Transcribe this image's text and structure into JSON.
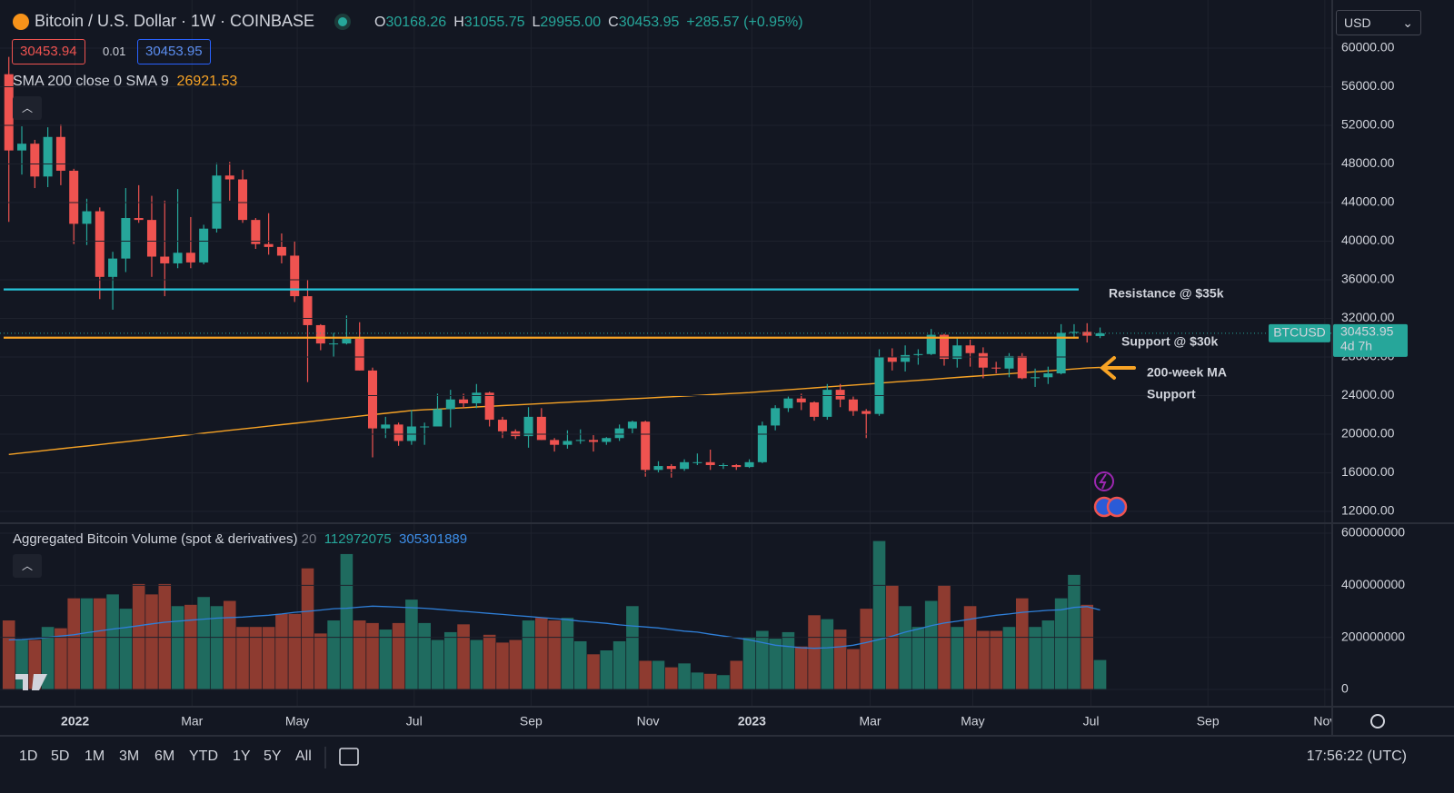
{
  "ui": {
    "ohlc_legend": [
      {
        "key": "O",
        "text": "30168.26"
      },
      {
        "key": "H",
        "text": "31055.75"
      },
      {
        "key": "L",
        "text": "29955.00"
      },
      {
        "key": "C",
        "text": "30453.95"
      }
    ],
    "change": "+285.57 (+0.95%)",
    "bid": "30453.94",
    "spread": "0.01",
    "ask": "30453.95",
    "currency": "USD",
    "symbol_tag": "BTCUSD",
    "countdown": "4d 7h",
    "ranges": [
      "1D",
      "5D",
      "1M",
      "3M",
      "6M",
      "YTD",
      "1Y",
      "5Y",
      "All"
    ],
    "clock": "17:56:22 (UTC)"
  },
  "chart_data": {
    "type": "candlestick",
    "title": "Bitcoin / U.S. Dollar · 1W · COINBASE",
    "up_color": "#26a69a",
    "down_color": "#ef5350",
    "grid": true,
    "open": [
      57300,
      49400,
      50100,
      46700,
      50800,
      47300,
      41800,
      43100,
      36300,
      38200,
      42400,
      42200,
      38400,
      37700,
      38800,
      37800,
      41300,
      46800,
      46400,
      42200,
      39700,
      39400,
      38500,
      34300,
      31300,
      29400,
      29400,
      29900,
      26600,
      20600,
      21000,
      19300,
      20800,
      20800,
      22600,
      23600,
      23200,
      24300,
      21500,
      20300,
      19800,
      21800,
      19400,
      18900,
      19300,
      19400,
      19200,
      19600,
      20600,
      21300,
      16300,
      16700,
      16400,
      17100,
      17100,
      16800,
      16800,
      16600,
      17100,
      20900,
      22700,
      23700,
      23300,
      21800,
      24600,
      23600,
      22400,
      22100,
      28000,
      27500,
      28200,
      28300,
      30300,
      27800,
      29200,
      28400,
      26900,
      26800,
      28100,
      25800,
      25900,
      26300,
      30500,
      30600,
      30168.26
    ],
    "high": [
      59100,
      51900,
      50500,
      51800,
      52100,
      47500,
      44400,
      43500,
      38900,
      45500,
      45800,
      44700,
      44200,
      45400,
      42500,
      41700,
      48100,
      48200,
      47400,
      42400,
      42900,
      40800,
      40000,
      36000,
      31400,
      30500,
      32300,
      31600,
      26900,
      21800,
      21200,
      22500,
      21200,
      24200,
      24600,
      24200,
      25200,
      24400,
      21800,
      20500,
      22800,
      22700,
      19600,
      20400,
      20500,
      19900,
      19700,
      21000,
      21400,
      21400,
      17200,
      16900,
      17400,
      18000,
      18400,
      17000,
      16900,
      17400,
      21300,
      23000,
      23900,
      24200,
      23400,
      25200,
      25200,
      23900,
      22600,
      28800,
      28900,
      29200,
      28800,
      30900,
      30400,
      30000,
      29800,
      29000,
      27500,
      28400,
      28400,
      26800,
      27000,
      31400,
      31400,
      31500,
      31055.75
    ],
    "low": [
      42000,
      46900,
      45500,
      45600,
      45800,
      39700,
      39600,
      34000,
      32900,
      36800,
      41900,
      36300,
      34300,
      37200,
      37200,
      37600,
      40900,
      44200,
      41900,
      39200,
      38600,
      37700,
      33700,
      25400,
      28700,
      28000,
      29300,
      26600,
      17600,
      19600,
      18800,
      18900,
      18900,
      20800,
      20700,
      22700,
      22700,
      20800,
      19600,
      19500,
      18600,
      19400,
      18200,
      18500,
      19000,
      18200,
      18900,
      19300,
      20100,
      15600,
      16000,
      15500,
      16200,
      16800,
      16300,
      16400,
      16300,
      16500,
      17000,
      20400,
      22300,
      22500,
      21400,
      21500,
      22800,
      21900,
      19600,
      21900,
      26600,
      26500,
      27200,
      28200,
      27100,
      26900,
      27000,
      25800,
      26300,
      25900,
      25700,
      24900,
      25200,
      26200,
      29900,
      29500,
      29955
    ],
    "close": [
      49400,
      50100,
      46700,
      50800,
      47300,
      41800,
      43100,
      36300,
      38200,
      42400,
      42200,
      38400,
      37700,
      38800,
      37800,
      41300,
      46800,
      46400,
      42200,
      39700,
      39400,
      38500,
      34300,
      31300,
      29400,
      29400,
      29900,
      26600,
      20600,
      21000,
      19300,
      20800,
      20800,
      22600,
      23600,
      23200,
      24300,
      21500,
      20300,
      19800,
      21800,
      19400,
      18900,
      19300,
      19400,
      19200,
      19600,
      20600,
      21300,
      16300,
      16700,
      16400,
      17100,
      17100,
      16800,
      16800,
      16600,
      17100,
      20900,
      22700,
      23700,
      23300,
      21800,
      24600,
      23600,
      22400,
      22100,
      28000,
      27500,
      28200,
      28300,
      30300,
      27800,
      29200,
      28400,
      26900,
      26800,
      28100,
      25800,
      25900,
      26300,
      30500,
      30600,
      30200,
      30453.95
    ],
    "sma": {
      "name": "SMA 200 close 0 SMA 9",
      "color": "#f7a325",
      "values": [
        17900,
        18050,
        18190,
        18340,
        18490,
        18640,
        18780,
        18930,
        19080,
        19220,
        19370,
        19520,
        19660,
        19810,
        19960,
        20110,
        20250,
        20400,
        20550,
        20690,
        20840,
        20990,
        21130,
        21280,
        21430,
        21580,
        21720,
        21870,
        22020,
        22160,
        22310,
        22460,
        22530,
        22600,
        22670,
        22740,
        22820,
        22890,
        22960,
        23030,
        23100,
        23170,
        23240,
        23310,
        23380,
        23450,
        23530,
        23600,
        23670,
        23740,
        23810,
        23880,
        23950,
        24020,
        24090,
        24170,
        24240,
        24310,
        24410,
        24510,
        24600,
        24700,
        24800,
        24900,
        25000,
        25090,
        25190,
        25290,
        25390,
        25490,
        25580,
        25680,
        25780,
        25880,
        25980,
        26070,
        26170,
        26270,
        26370,
        26470,
        26560,
        26660,
        26760,
        26860,
        26921.53
      ]
    },
    "levels": [
      {
        "name": "Resistance @ $35k",
        "value": 35000,
        "color": "#26c6da"
      },
      {
        "name": "Support @ $30k",
        "value": 30000,
        "color": "#f7a325"
      }
    ],
    "annotations": [
      "200-week MA",
      "Support"
    ],
    "xlim": [
      -0.4,
      101.8
    ],
    "xticks": [
      {
        "value": 5.1,
        "label": "2022"
      },
      {
        "value": 14.1,
        "label": "Mar"
      },
      {
        "value": 22.2,
        "label": "May"
      },
      {
        "value": 31.2,
        "label": "Jul"
      },
      {
        "value": 40.2,
        "label": "Sep"
      },
      {
        "value": 49.2,
        "label": "Nov"
      },
      {
        "value": 57.2,
        "label": "2023"
      },
      {
        "value": 66.3,
        "label": "Mar"
      },
      {
        "value": 74.2,
        "label": "May"
      },
      {
        "value": 83.3,
        "label": "Jul"
      },
      {
        "value": 92.3,
        "label": "Sep"
      },
      {
        "value": 101.3,
        "label": "Nov"
      }
    ],
    "ylim": [
      10870,
      64990
    ],
    "yticks": [
      {
        "value": 12000,
        "label": "12000.00"
      },
      {
        "value": 16000,
        "label": "16000.00"
      },
      {
        "value": 20000,
        "label": "20000.00"
      },
      {
        "value": 24000,
        "label": "24000.00"
      },
      {
        "value": 28000,
        "label": "28000.00"
      },
      {
        "value": 32000,
        "label": "32000.00"
      },
      {
        "value": 36000,
        "label": "36000.00"
      },
      {
        "value": 40000,
        "label": "40000.00"
      },
      {
        "value": 44000,
        "label": "44000.00"
      },
      {
        "value": 48000,
        "label": "48000.00"
      },
      {
        "value": 52000,
        "label": "52000.00"
      },
      {
        "value": 56000,
        "label": "56000.00"
      },
      {
        "value": 60000,
        "label": "60000.00"
      }
    ],
    "volume": {
      "title": "Aggregated Bitcoin Volume (spot & derivatives)",
      "period": "20",
      "up_color": "#1f6b5f",
      "down_color": "#8e3b30",
      "ma_color": "#2f7fd8",
      "values": [
        265000000,
        190000000,
        190000000,
        240000000,
        235000000,
        350000000,
        350000000,
        350000000,
        365000000,
        310000000,
        405000000,
        365000000,
        405000000,
        320000000,
        325000000,
        355000000,
        320000000,
        340000000,
        240000000,
        240000000,
        240000000,
        290000000,
        290000000,
        465000000,
        215000000,
        265000000,
        520000000,
        265000000,
        255000000,
        230000000,
        255000000,
        345000000,
        255000000,
        190000000,
        220000000,
        250000000,
        190000000,
        210000000,
        180000000,
        190000000,
        265000000,
        275000000,
        265000000,
        275000000,
        185000000,
        135000000,
        150000000,
        185000000,
        320000000,
        110000000,
        110000000,
        85000000,
        100000000,
        65000000,
        60000000,
        55000000,
        110000000,
        200000000,
        225000000,
        195000000,
        220000000,
        165000000,
        285000000,
        270000000,
        230000000,
        155000000,
        310000000,
        570000000,
        400000000,
        320000000,
        240000000,
        340000000,
        400000000,
        240000000,
        320000000,
        225000000,
        225000000,
        240000000,
        350000000,
        240000000,
        265000000,
        350000000,
        440000000,
        325000000,
        112972075
      ],
      "ma_values": [
        190000000,
        192000000,
        195000000,
        200000000,
        205000000,
        210000000,
        218000000,
        225000000,
        232000000,
        238000000,
        245000000,
        252000000,
        258000000,
        262000000,
        266000000,
        270000000,
        274000000,
        276000000,
        278000000,
        282000000,
        285000000,
        290000000,
        296000000,
        300000000,
        305000000,
        310000000,
        312000000,
        316000000,
        320000000,
        318000000,
        316000000,
        314000000,
        312000000,
        308000000,
        304000000,
        300000000,
        296000000,
        292000000,
        288000000,
        284000000,
        280000000,
        276000000,
        272000000,
        268000000,
        262000000,
        258000000,
        254000000,
        248000000,
        244000000,
        240000000,
        236000000,
        230000000,
        224000000,
        220000000,
        212000000,
        205000000,
        198000000,
        190000000,
        180000000,
        170000000,
        165000000,
        160000000,
        158000000,
        160000000,
        164000000,
        170000000,
        180000000,
        192000000,
        205000000,
        220000000,
        232000000,
        245000000,
        255000000,
        262000000,
        270000000,
        278000000,
        285000000,
        290000000,
        296000000,
        300000000,
        304000000,
        306000000,
        315000000,
        318000000,
        305301889
      ],
      "ylim": [
        -62800000,
        631400000
      ],
      "yticks": [
        0,
        200000000,
        400000000,
        600000000
      ]
    }
  }
}
